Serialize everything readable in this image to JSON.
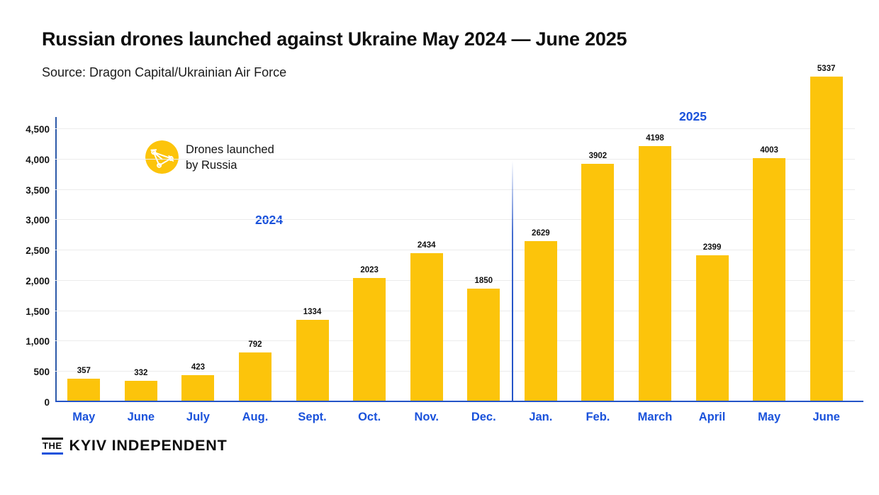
{
  "header": {
    "title": "Russian drones launched against Ukraine May 2024 — June 2025",
    "source": "Source: Dragon Capital/Ukrainian Air Force"
  },
  "chart_data": {
    "type": "bar",
    "title": "Russian drones launched against Ukraine May 2024 — June 2025",
    "categories": [
      "May",
      "June",
      "July",
      "Aug.",
      "Sept.",
      "Oct.",
      "Nov.",
      "Dec.",
      "Jan.",
      "Feb.",
      "March",
      "April",
      "May",
      "June"
    ],
    "values": [
      357,
      332,
      423,
      792,
      1334,
      2023,
      2434,
      1850,
      2629,
      3902,
      4198,
      2399,
      4003,
      5337
    ],
    "series_name": "Drones launched by Russia",
    "legend_lines": [
      "Drones launched",
      "by Russia"
    ],
    "year_labels": [
      "2024",
      "2025"
    ],
    "year_split_index": 8,
    "y_ticks": [
      0,
      500,
      1000,
      1500,
      2000,
      2500,
      3000,
      3500,
      4000,
      4500
    ],
    "ylim": [
      0,
      4500
    ],
    "grid": true,
    "legend_position": "upper-left",
    "bar_color": "#fcc40b",
    "label_color": "#1a52db",
    "axis_color": "#2454c8",
    "grid_color": "#ececec"
  },
  "footer": {
    "logo_small": "THE",
    "logo_main": "KYIV INDEPENDENT"
  }
}
